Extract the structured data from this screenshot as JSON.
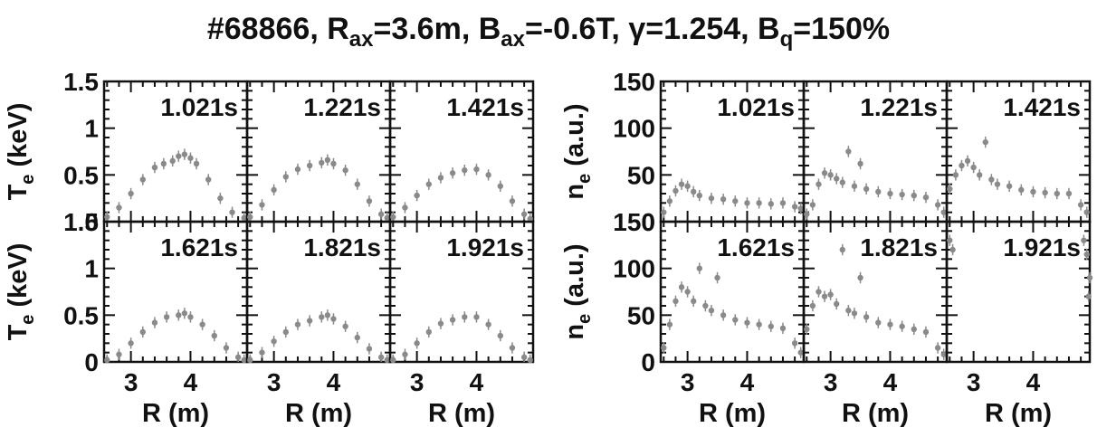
{
  "title": {
    "prefix": "#68866, R",
    "rax_sub": "ax",
    "rax_val": "=3.6m, B",
    "bax_sub": "ax",
    "bax_val": "=-0.6T, γ=1.254, B",
    "bq_sub": "q",
    "bq_val": "=150%"
  },
  "chart_data": [
    {
      "type": "scatter",
      "group": "electron-temperature",
      "ylabel": "T",
      "ylabel_sub": "e",
      "ylabel_unit": "(keV)",
      "xlabel": "R (m)",
      "xlim": [
        2.55,
        4.95
      ],
      "ylim": [
        0,
        1.5
      ],
      "y_ticks": [
        "0",
        "0.5",
        "1",
        "1.5"
      ],
      "x_ticks": [
        "3",
        "4"
      ],
      "marker_color": "#8a8a8a",
      "panels": [
        {
          "time": "1.021s",
          "series": [
            {
              "values": [
                [
                  2.6,
                  0.05
                ],
                [
                  2.8,
                  0.15
                ],
                [
                  3.0,
                  0.3
                ],
                [
                  3.2,
                  0.45
                ],
                [
                  3.4,
                  0.58
                ],
                [
                  3.55,
                  0.62
                ],
                [
                  3.7,
                  0.65
                ],
                [
                  3.8,
                  0.7
                ],
                [
                  3.9,
                  0.72
                ],
                [
                  4.0,
                  0.68
                ],
                [
                  4.1,
                  0.62
                ],
                [
                  4.3,
                  0.45
                ],
                [
                  4.5,
                  0.25
                ],
                [
                  4.7,
                  0.1
                ],
                [
                  4.9,
                  0.04
                ]
              ]
            }
          ]
        },
        {
          "time": "1.221s",
          "series": [
            {
              "values": [
                [
                  2.6,
                  0.05
                ],
                [
                  2.8,
                  0.18
                ],
                [
                  3.0,
                  0.34
                ],
                [
                  3.2,
                  0.48
                ],
                [
                  3.4,
                  0.56
                ],
                [
                  3.6,
                  0.6
                ],
                [
                  3.8,
                  0.63
                ],
                [
                  3.9,
                  0.66
                ],
                [
                  4.0,
                  0.62
                ],
                [
                  4.2,
                  0.55
                ],
                [
                  4.4,
                  0.4
                ],
                [
                  4.6,
                  0.22
                ],
                [
                  4.8,
                  0.08
                ],
                [
                  4.9,
                  0.04
                ]
              ]
            }
          ]
        },
        {
          "time": "1.421s",
          "series": [
            {
              "values": [
                [
                  2.6,
                  0.05
                ],
                [
                  2.8,
                  0.15
                ],
                [
                  3.0,
                  0.28
                ],
                [
                  3.2,
                  0.4
                ],
                [
                  3.4,
                  0.47
                ],
                [
                  3.6,
                  0.52
                ],
                [
                  3.8,
                  0.55
                ],
                [
                  4.0,
                  0.56
                ],
                [
                  4.2,
                  0.5
                ],
                [
                  4.4,
                  0.38
                ],
                [
                  4.6,
                  0.22
                ],
                [
                  4.8,
                  0.08
                ],
                [
                  4.9,
                  0.03
                ]
              ]
            }
          ]
        },
        {
          "time": "1.621s",
          "series": [
            {
              "values": [
                [
                  2.6,
                  0.02
                ],
                [
                  2.8,
                  0.08
                ],
                [
                  3.0,
                  0.2
                ],
                [
                  3.2,
                  0.32
                ],
                [
                  3.4,
                  0.42
                ],
                [
                  3.6,
                  0.48
                ],
                [
                  3.8,
                  0.5
                ],
                [
                  3.9,
                  0.52
                ],
                [
                  4.0,
                  0.48
                ],
                [
                  4.2,
                  0.4
                ],
                [
                  4.4,
                  0.28
                ],
                [
                  4.6,
                  0.15
                ],
                [
                  4.8,
                  0.05
                ],
                [
                  4.9,
                  0.02
                ]
              ]
            }
          ]
        },
        {
          "time": "1.821s",
          "series": [
            {
              "values": [
                [
                  2.6,
                  0.02
                ],
                [
                  2.8,
                  0.1
                ],
                [
                  3.0,
                  0.22
                ],
                [
                  3.2,
                  0.32
                ],
                [
                  3.4,
                  0.4
                ],
                [
                  3.6,
                  0.44
                ],
                [
                  3.8,
                  0.48
                ],
                [
                  3.9,
                  0.5
                ],
                [
                  4.0,
                  0.46
                ],
                [
                  4.2,
                  0.38
                ],
                [
                  4.4,
                  0.26
                ],
                [
                  4.6,
                  0.14
                ],
                [
                  4.8,
                  0.05
                ],
                [
                  4.9,
                  0.02
                ]
              ]
            }
          ]
        },
        {
          "time": "1.921s",
          "series": [
            {
              "values": [
                [
                  2.6,
                  0.02
                ],
                [
                  2.8,
                  0.08
                ],
                [
                  3.0,
                  0.2
                ],
                [
                  3.2,
                  0.32
                ],
                [
                  3.4,
                  0.41
                ],
                [
                  3.6,
                  0.45
                ],
                [
                  3.8,
                  0.48
                ],
                [
                  4.0,
                  0.48
                ],
                [
                  4.2,
                  0.4
                ],
                [
                  4.4,
                  0.28
                ],
                [
                  4.6,
                  0.15
                ],
                [
                  4.8,
                  0.05
                ],
                [
                  4.9,
                  0.02
                ]
              ]
            }
          ]
        }
      ]
    },
    {
      "type": "scatter",
      "group": "electron-density",
      "ylabel": "n",
      "ylabel_sub": "e",
      "ylabel_unit": "(a.u.)",
      "xlabel": "R (m)",
      "xlim": [
        2.55,
        4.95
      ],
      "ylim": [
        0,
        150
      ],
      "y_ticks": [
        "0",
        "50",
        "100",
        "150"
      ],
      "x_ticks": [
        "3",
        "4"
      ],
      "marker_color": "#8a8a8a",
      "panels": [
        {
          "time": "1.021s",
          "series": [
            {
              "values": [
                [
                  2.6,
                  10
                ],
                [
                  2.7,
                  22
                ],
                [
                  2.8,
                  33
                ],
                [
                  2.9,
                  40
                ],
                [
                  3.0,
                  38
                ],
                [
                  3.1,
                  32
                ],
                [
                  3.2,
                  28
                ],
                [
                  3.4,
                  25
                ],
                [
                  3.6,
                  24
                ],
                [
                  3.8,
                  22
                ],
                [
                  4.0,
                  20
                ],
                [
                  4.2,
                  20
                ],
                [
                  4.4,
                  19
                ],
                [
                  4.6,
                  20
                ],
                [
                  4.8,
                  16
                ],
                [
                  4.9,
                  14
                ]
              ]
            }
          ]
        },
        {
          "time": "1.221s",
          "series": [
            {
              "values": [
                [
                  2.6,
                  8
                ],
                [
                  2.7,
                  18
                ],
                [
                  2.8,
                  40
                ],
                [
                  2.9,
                  52
                ],
                [
                  3.0,
                  50
                ],
                [
                  3.1,
                  46
                ],
                [
                  3.2,
                  42
                ],
                [
                  3.3,
                  75
                ],
                [
                  3.4,
                  38
                ],
                [
                  3.5,
                  62
                ],
                [
                  3.6,
                  35
                ],
                [
                  3.8,
                  32
                ],
                [
                  4.0,
                  30
                ],
                [
                  4.2,
                  29
                ],
                [
                  4.4,
                  28
                ],
                [
                  4.6,
                  26
                ],
                [
                  4.8,
                  18
                ],
                [
                  4.9,
                  10
                ]
              ]
            }
          ]
        },
        {
          "time": "1.421s",
          "series": [
            {
              "values": [
                [
                  2.6,
                  35
                ],
                [
                  2.7,
                  50
                ],
                [
                  2.8,
                  60
                ],
                [
                  2.9,
                  65
                ],
                [
                  3.0,
                  58
                ],
                [
                  3.1,
                  50
                ],
                [
                  3.2,
                  85
                ],
                [
                  3.3,
                  45
                ],
                [
                  3.4,
                  40
                ],
                [
                  3.6,
                  38
                ],
                [
                  3.8,
                  34
                ],
                [
                  4.0,
                  32
                ],
                [
                  4.2,
                  31
                ],
                [
                  4.4,
                  30
                ],
                [
                  4.6,
                  30
                ],
                [
                  4.8,
                  18
                ],
                [
                  4.9,
                  10
                ]
              ]
            }
          ]
        },
        {
          "time": "1.621s",
          "series": [
            {
              "values": [
                [
                  2.6,
                  15
                ],
                [
                  2.7,
                  40
                ],
                [
                  2.8,
                  65
                ],
                [
                  2.9,
                  80
                ],
                [
                  3.0,
                  75
                ],
                [
                  3.1,
                  65
                ],
                [
                  3.2,
                  100
                ],
                [
                  3.3,
                  60
                ],
                [
                  3.4,
                  55
                ],
                [
                  3.5,
                  90
                ],
                [
                  3.6,
                  50
                ],
                [
                  3.8,
                  45
                ],
                [
                  4.0,
                  42
                ],
                [
                  4.2,
                  40
                ],
                [
                  4.4,
                  38
                ],
                [
                  4.6,
                  36
                ],
                [
                  4.8,
                  20
                ],
                [
                  4.9,
                  10
                ]
              ]
            }
          ]
        },
        {
          "time": "1.821s",
          "series": [
            {
              "values": [
                [
                  2.6,
                  35
                ],
                [
                  2.7,
                  60
                ],
                [
                  2.8,
                  75
                ],
                [
                  2.9,
                  70
                ],
                [
                  3.0,
                  72
                ],
                [
                  3.1,
                  62
                ],
                [
                  3.2,
                  120
                ],
                [
                  3.3,
                  55
                ],
                [
                  3.4,
                  52
                ],
                [
                  3.5,
                  90
                ],
                [
                  3.6,
                  48
                ],
                [
                  3.8,
                  42
                ],
                [
                  4.0,
                  40
                ],
                [
                  4.2,
                  38
                ],
                [
                  4.4,
                  35
                ],
                [
                  4.6,
                  32
                ],
                [
                  4.8,
                  15
                ],
                [
                  4.9,
                  8
                ]
              ]
            }
          ]
        },
        {
          "time": "1.921s",
          "series": [
            {
              "values": [
                [
                  2.6,
                  130
                ],
                [
                  2.65,
                  120
                ],
                [
                  4.85,
                  130
                ],
                [
                  4.9,
                  115
                ],
                [
                  4.95,
                  90
                ],
                [
                  4.93,
                  70
                ]
              ]
            }
          ]
        }
      ]
    }
  ]
}
